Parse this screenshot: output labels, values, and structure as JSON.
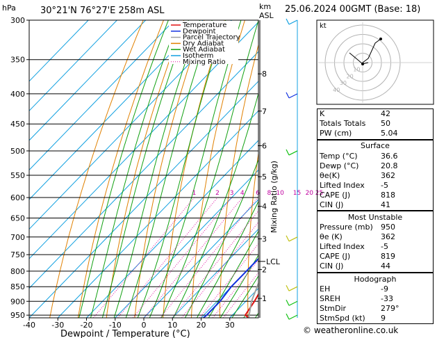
{
  "header": {
    "hpa_label": "hPa",
    "location": "30°21'N  76°27'E  258m  ASL",
    "km_label": "km",
    "asl_label": "ASL",
    "datetime": "25.06.2024  00GMT  (Base: 18)"
  },
  "legend": [
    {
      "label": "Temperature",
      "color": "#e01010",
      "style": "solid"
    },
    {
      "label": "Dewpoint",
      "color": "#1030e0",
      "style": "solid"
    },
    {
      "label": "Parcel Trajectory",
      "color": "#a0a0a0",
      "style": "solid"
    },
    {
      "label": "Dry Adiabat",
      "color": "#e08000",
      "style": "solid"
    },
    {
      "label": "Wet Adiabat",
      "color": "#10a010",
      "style": "solid"
    },
    {
      "label": "Isotherm",
      "color": "#10a0e0",
      "style": "solid"
    },
    {
      "label": "Mixing Ratio",
      "color": "#e010a0",
      "style": "dotted"
    }
  ],
  "chart_data": {
    "type": "line",
    "title": "",
    "xlabel": "Dewpoint / Temperature (°C)",
    "ylabel": "hPa",
    "right_axis_label": "Mixing Ratio (g/kg)",
    "xlim": [
      -40,
      40
    ],
    "ylim_hpa": [
      960,
      300
    ],
    "x_ticks": [
      -40,
      -30,
      -20,
      -10,
      0,
      10,
      20,
      30
    ],
    "pressure_levels": [
      300,
      350,
      400,
      450,
      500,
      550,
      600,
      650,
      700,
      750,
      800,
      850,
      900,
      950
    ],
    "km_ticks": [
      {
        "label": "8",
        "hpa": 370
      },
      {
        "label": "7",
        "hpa": 428
      },
      {
        "label": "6",
        "hpa": 490
      },
      {
        "label": "5",
        "hpa": 553
      },
      {
        "label": "4",
        "hpa": 621
      },
      {
        "label": "3",
        "hpa": 705
      },
      {
        "label": "2",
        "hpa": 795
      },
      {
        "label": "1",
        "hpa": 890
      }
    ],
    "lcl": {
      "label": "LCL",
      "hpa": 770
    },
    "mixing_ratio_labels": [
      "1",
      "2",
      "3",
      "4",
      "6",
      "8",
      "10",
      "15",
      "20",
      "25"
    ],
    "mixing_ratio_values": [
      1,
      2,
      3,
      4,
      6,
      8,
      10,
      15,
      20,
      25
    ],
    "series": [
      {
        "name": "Temperature",
        "color": "#e01010",
        "points": [
          [
            36.6,
            960
          ],
          [
            34.5,
            950
          ],
          [
            33,
            900
          ],
          [
            31,
            850
          ],
          [
            29,
            800
          ],
          [
            26.5,
            750
          ],
          [
            23.5,
            700
          ],
          [
            21.5,
            650
          ],
          [
            20,
            600
          ],
          [
            18,
            550
          ],
          [
            16,
            500
          ],
          [
            14,
            450
          ],
          [
            12.5,
            400
          ],
          [
            12,
            350
          ],
          [
            11,
            330
          ]
        ]
      },
      {
        "name": "Dewpoint",
        "color": "#1030e0",
        "points": [
          [
            20.8,
            960
          ],
          [
            21,
            950
          ],
          [
            21,
            900
          ],
          [
            20,
            850
          ],
          [
            20,
            800
          ],
          [
            20,
            750
          ],
          [
            21,
            700
          ],
          [
            20,
            650
          ],
          [
            17,
            600
          ],
          [
            14,
            550
          ],
          [
            13,
            500
          ],
          [
            10,
            450
          ],
          [
            14,
            400
          ],
          [
            -28,
            350
          ],
          [
            -32,
            300
          ]
        ]
      },
      {
        "name": "Parcel Trajectory",
        "color": "#a0a0a0",
        "points": [
          [
            36.6,
            960
          ],
          [
            32,
            900
          ],
          [
            29,
            850
          ],
          [
            26,
            800
          ],
          [
            24,
            770
          ],
          [
            23,
            750
          ],
          [
            22,
            700
          ],
          [
            22,
            650
          ],
          [
            22,
            600
          ],
          [
            21,
            550
          ],
          [
            20,
            500
          ],
          [
            19,
            450
          ],
          [
            18,
            400
          ],
          [
            17,
            350
          ],
          [
            16,
            330
          ]
        ]
      }
    ]
  },
  "hodograph": {
    "label": "kt",
    "ring_labels": [
      "10",
      "20",
      "30",
      "40"
    ]
  },
  "indices": [
    {
      "key": "K",
      "value": "42"
    },
    {
      "key": "Totals Totals",
      "value": "50"
    },
    {
      "key": "PW (cm)",
      "value": "5.04"
    }
  ],
  "surface": {
    "title": "Surface",
    "rows": [
      {
        "key": "Temp (°C)",
        "value": "36.6"
      },
      {
        "key": "Dewp (°C)",
        "value": "20.8"
      },
      {
        "key": "θe(K)",
        "value": "362"
      },
      {
        "key": "Lifted Index",
        "value": "-5"
      },
      {
        "key": "CAPE (J)",
        "value": "818"
      },
      {
        "key": "CIN (J)",
        "value": "41"
      }
    ]
  },
  "most_unstable": {
    "title": "Most Unstable",
    "rows": [
      {
        "key": "Pressure (mb)",
        "value": "950"
      },
      {
        "key": "θe (K)",
        "value": "362"
      },
      {
        "key": "Lifted Index",
        "value": "-5"
      },
      {
        "key": "CAPE (J)",
        "value": "819"
      },
      {
        "key": "CIN (J)",
        "value": "44"
      }
    ]
  },
  "hodograph_table": {
    "title": "Hodograph",
    "rows": [
      {
        "key": "EH",
        "value": "-9"
      },
      {
        "key": "SREH",
        "value": "-33"
      },
      {
        "key": "StmDir",
        "value": "279°"
      },
      {
        "key": "StmSpd (kt)",
        "value": "9"
      }
    ]
  },
  "footer": "© weatheronline.co.uk"
}
